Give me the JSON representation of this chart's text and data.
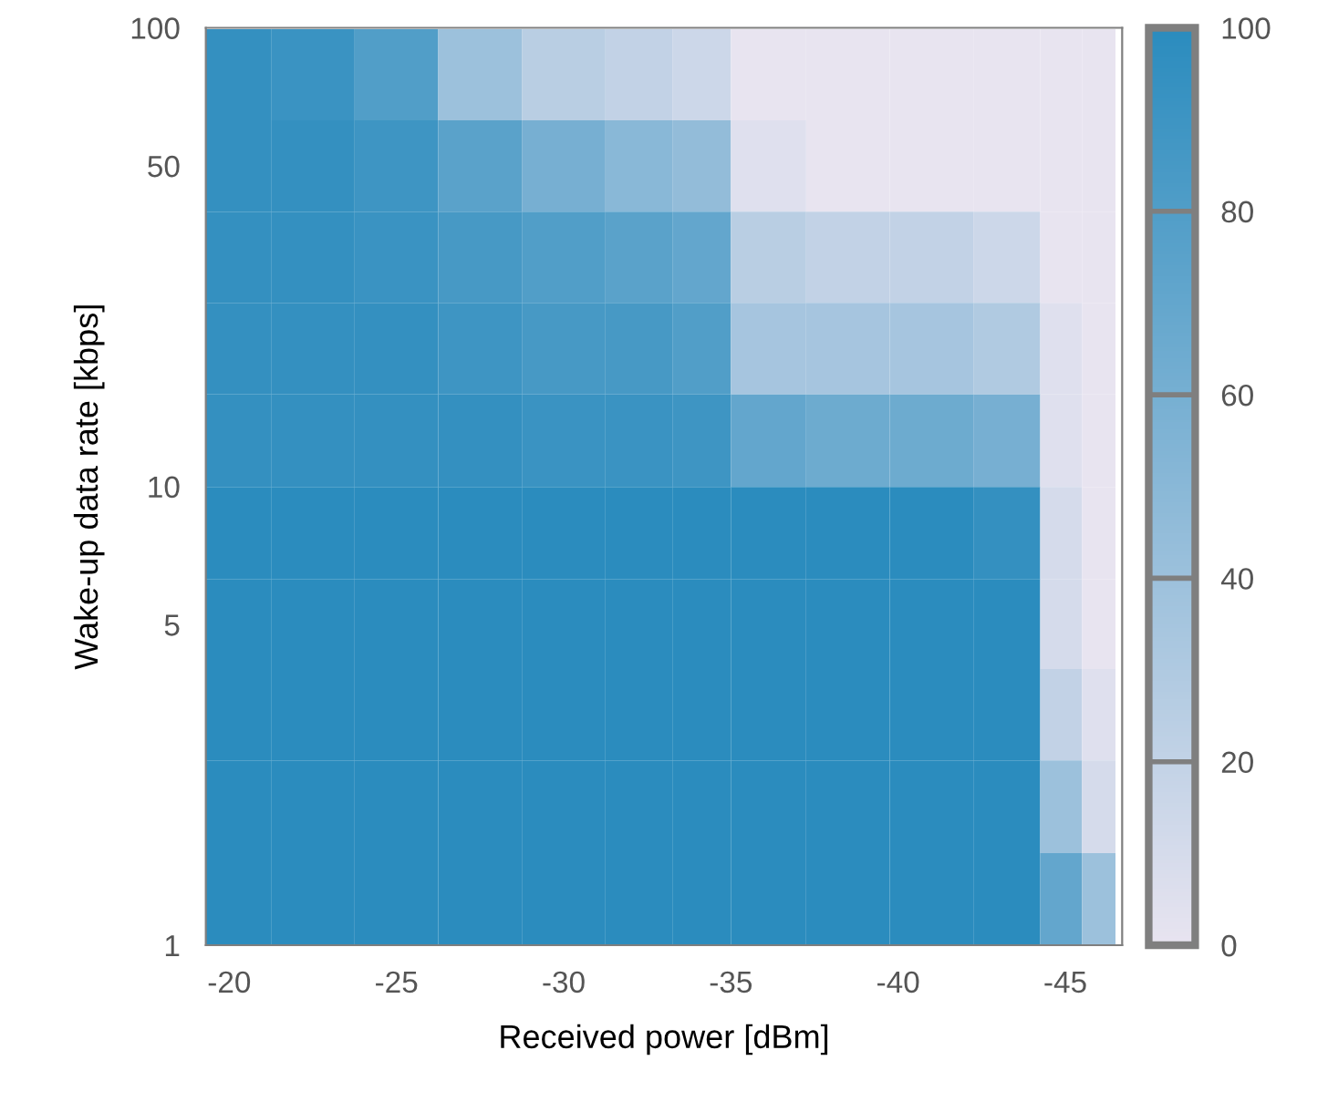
{
  "chart_data": {
    "type": "heatmap",
    "xlabel": "Received power [dBm]",
    "ylabel": "Wake-up data rate [kbps]",
    "x": [
      -20,
      -22.5,
      -25,
      -27.5,
      -30,
      -32.5,
      -34,
      -36,
      -38.5,
      -41,
      -43.5,
      -45,
      -46
    ],
    "y": [
      79,
      50,
      31.6,
      20,
      12.6,
      7.9,
      5,
      3.2,
      2,
      1.26
    ],
    "cells": [
      [
        95,
        92,
        80,
        40,
        25,
        20,
        15,
        0,
        0,
        0,
        0,
        0,
        0
      ],
      [
        95,
        95,
        90,
        75,
        60,
        50,
        45,
        5,
        0,
        0,
        0,
        0,
        0
      ],
      [
        95,
        95,
        92,
        85,
        80,
        75,
        70,
        25,
        20,
        20,
        15,
        0,
        0
      ],
      [
        95,
        95,
        95,
        90,
        85,
        85,
        80,
        35,
        35,
        35,
        30,
        5,
        0
      ],
      [
        95,
        95,
        95,
        95,
        92,
        92,
        90,
        70,
        65,
        65,
        60,
        5,
        0
      ],
      [
        100,
        100,
        100,
        100,
        100,
        100,
        100,
        100,
        100,
        100,
        95,
        10,
        0
      ],
      [
        100,
        100,
        100,
        100,
        100,
        100,
        100,
        100,
        100,
        100,
        100,
        10,
        0
      ],
      [
        100,
        100,
        100,
        100,
        100,
        100,
        100,
        100,
        100,
        100,
        100,
        20,
        5
      ],
      [
        100,
        100,
        100,
        100,
        100,
        100,
        100,
        100,
        100,
        100,
        100,
        40,
        10
      ],
      [
        100,
        100,
        100,
        100,
        100,
        100,
        100,
        100,
        100,
        100,
        100,
        70,
        40
      ]
    ],
    "colors": [
      "#e8e4f0",
      "#2b8cbe"
    ],
    "xlim": [
      -19.3,
      -46.7
    ],
    "xticks": [
      -20,
      -25,
      -30,
      -35,
      -40,
      -45
    ],
    "ylim": [
      1,
      100
    ],
    "yticks": [
      1,
      5,
      10,
      50,
      100
    ],
    "log": "y",
    "clim": [
      0,
      100
    ],
    "cticks": [
      0,
      20,
      40,
      60,
      80,
      100
    ]
  }
}
